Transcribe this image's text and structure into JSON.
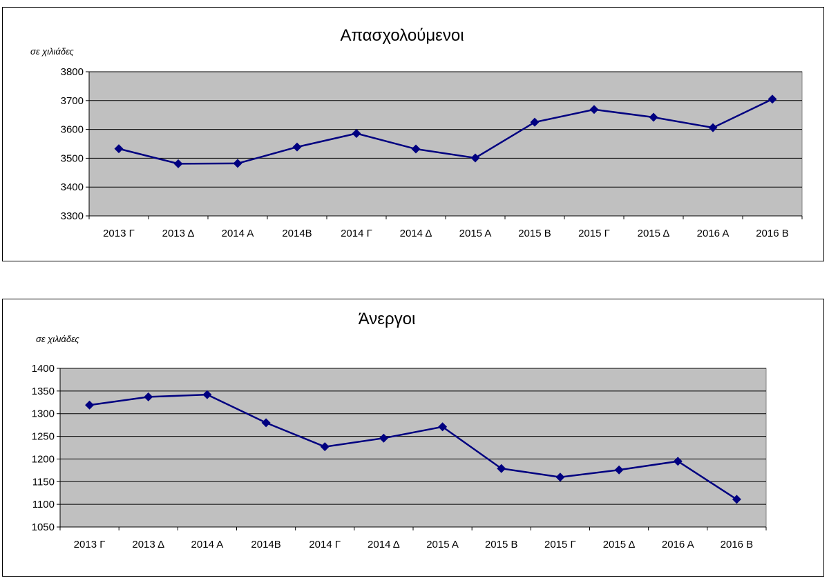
{
  "chart_data": [
    {
      "type": "line",
      "title": "Απασχολούμενοι",
      "ylabel": "σε χιλιάδες",
      "xlabel": "",
      "categories": [
        "2013 Γ",
        "2013 Δ",
        "2014 Α",
        "2014Β",
        "2014 Γ",
        "2014 Δ",
        "2015 Α",
        "2015 Β",
        "2015 Γ",
        "2015 Δ",
        "2016 Α",
        "2016 Β"
      ],
      "values": [
        3533,
        3481,
        3482,
        3539,
        3586,
        3532,
        3501,
        3625,
        3669,
        3642,
        3606,
        3705
      ],
      "ylim": [
        3300,
        3800
      ],
      "yticks": [
        "3300",
        "3400",
        "3500",
        "3600",
        "3700",
        "3800"
      ],
      "ystep": 100,
      "grid": true,
      "series_color": "#000080",
      "plot_color": "#c0c0c0"
    },
    {
      "type": "line",
      "title": "Άνεργοι",
      "ylabel": "σε χιλιάδες",
      "xlabel": "",
      "categories": [
        "2013 Γ",
        "2013 Δ",
        "2014 Α",
        "2014Β",
        "2014 Γ",
        "2014 Δ",
        "2015 Α",
        "2015 Β",
        "2015 Γ",
        "2015 Δ",
        "2016 Α",
        "2016 Β"
      ],
      "values": [
        1319,
        1337,
        1342,
        1280,
        1227,
        1246,
        1271,
        1179,
        1160,
        1176,
        1195,
        1111
      ],
      "ylim": [
        1050,
        1400
      ],
      "yticks": [
        "1050",
        "1100",
        "1150",
        "1200",
        "1250",
        "1300",
        "1350",
        "1400"
      ],
      "ystep": 50,
      "grid": true,
      "series_color": "#000080",
      "plot_color": "#c0c0c0"
    }
  ]
}
